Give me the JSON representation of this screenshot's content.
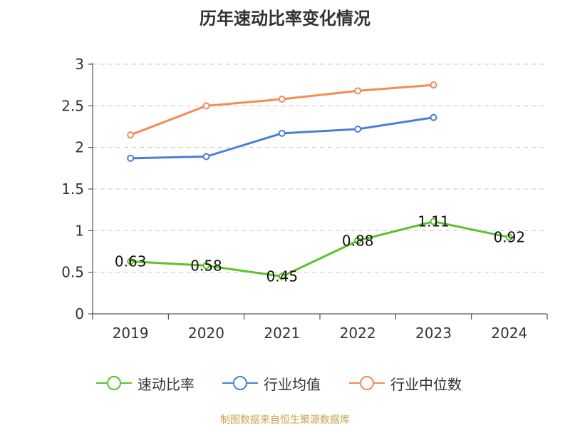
{
  "title": "历年速动比率变化情况",
  "source": "制图数据来自恒生聚源数据库",
  "chart_data": {
    "type": "line",
    "title": "历年速动比率变化情况",
    "categories": [
      "2019",
      "2020",
      "2021",
      "2022",
      "2023",
      "2024"
    ],
    "ylim": [
      0,
      3
    ],
    "yticks": [
      "0",
      "0.5",
      "1",
      "1.5",
      "2",
      "2.5",
      "3"
    ],
    "grid": true,
    "legend_position": "bottom",
    "series": [
      {
        "name": "速动比率",
        "color": "#5cc22a",
        "values": [
          0.63,
          0.58,
          0.45,
          0.88,
          1.11,
          0.92
        ],
        "labels": [
          "0.63",
          "0.58",
          "0.45",
          "0.88",
          "1.11",
          "0.92"
        ]
      },
      {
        "name": "行业均值",
        "color": "#4a7fd8",
        "values": [
          1.87,
          1.89,
          2.17,
          2.22,
          2.36,
          null
        ]
      },
      {
        "name": "行业中位数",
        "color": "#f58c55",
        "values": [
          2.15,
          2.5,
          2.58,
          2.68,
          2.75,
          null
        ]
      }
    ]
  }
}
